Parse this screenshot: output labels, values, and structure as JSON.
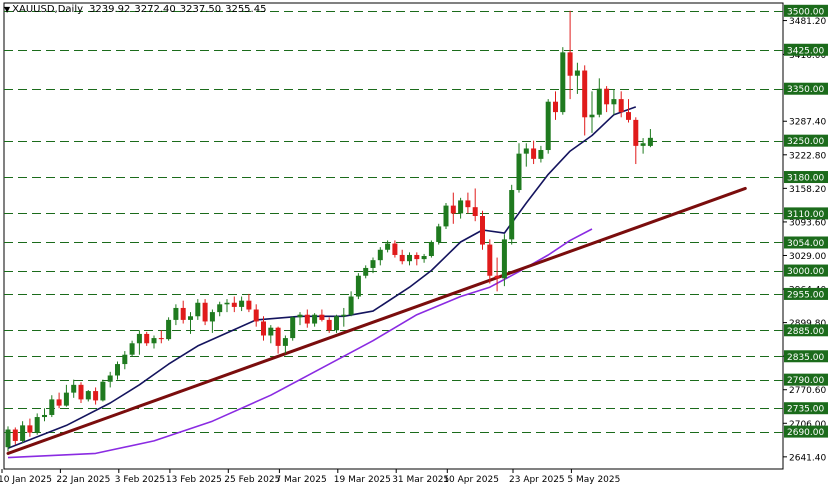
{
  "header": {
    "symbol": "XAUUSD,Daily",
    "open": "3239.92",
    "high": "3272.40",
    "low": "3237.50",
    "close": "3255.45"
  },
  "colors": {
    "bull": "#1f7a1f",
    "bear": "#e01b1b",
    "ma_fast": "#14145e",
    "ma_slow": "#8a2be2",
    "trendline": "#7a0d0d",
    "level_line": "#1b6b1b",
    "axis_text": "#000000",
    "background": "#ffffff"
  },
  "chart_data": {
    "type": "candlestick",
    "title": "",
    "xlabel": "",
    "ylabel": "",
    "ylim": [
      2618,
      3515
    ],
    "grid": false,
    "x_ticks": [
      "10 Jan 2025",
      "22 Jan 2025",
      "3 Feb 2025",
      "13 Feb 2025",
      "25 Feb 2025",
      "7 Mar 2025",
      "19 Mar 2025",
      "31 Mar 2025",
      "10 Apr 2025",
      "23 Apr 2025",
      "5 May 2025"
    ],
    "y_ticks": [
      "3481.20",
      "3416.00",
      "3287.40",
      "3222.80",
      "3158.20",
      "3093.60",
      "3029.00",
      "2964.40",
      "2899.80",
      "2835.20",
      "2770.60",
      "2706.00",
      "2641.40"
    ],
    "levels": [
      "3500.00",
      "3425.00",
      "3350.00",
      "3250.00",
      "3180.00",
      "3110.00",
      "3054.00",
      "3000.00",
      "2955.00",
      "2885.00",
      "2835.00",
      "2790.00",
      "2735.00",
      "2690.00"
    ],
    "candles": [
      {
        "o": 2660,
        "h": 2700,
        "l": 2652,
        "c": 2694
      },
      {
        "o": 2694,
        "h": 2698,
        "l": 2665,
        "c": 2672
      },
      {
        "o": 2672,
        "h": 2710,
        "l": 2668,
        "c": 2702
      },
      {
        "o": 2702,
        "h": 2715,
        "l": 2680,
        "c": 2688
      },
      {
        "o": 2688,
        "h": 2725,
        "l": 2684,
        "c": 2718
      },
      {
        "o": 2718,
        "h": 2735,
        "l": 2710,
        "c": 2722
      },
      {
        "o": 2722,
        "h": 2760,
        "l": 2718,
        "c": 2752
      },
      {
        "o": 2752,
        "h": 2765,
        "l": 2735,
        "c": 2740
      },
      {
        "o": 2740,
        "h": 2780,
        "l": 2738,
        "c": 2765
      },
      {
        "o": 2765,
        "h": 2790,
        "l": 2755,
        "c": 2780
      },
      {
        "o": 2780,
        "h": 2785,
        "l": 2745,
        "c": 2752
      },
      {
        "o": 2752,
        "h": 2770,
        "l": 2748,
        "c": 2768
      },
      {
        "o": 2768,
        "h": 2775,
        "l": 2742,
        "c": 2750
      },
      {
        "o": 2750,
        "h": 2790,
        "l": 2748,
        "c": 2786
      },
      {
        "o": 2786,
        "h": 2805,
        "l": 2775,
        "c": 2798
      },
      {
        "o": 2798,
        "h": 2825,
        "l": 2790,
        "c": 2820
      },
      {
        "o": 2820,
        "h": 2845,
        "l": 2810,
        "c": 2838
      },
      {
        "o": 2838,
        "h": 2865,
        "l": 2835,
        "c": 2860
      },
      {
        "o": 2860,
        "h": 2885,
        "l": 2838,
        "c": 2878
      },
      {
        "o": 2878,
        "h": 2882,
        "l": 2855,
        "c": 2860
      },
      {
        "o": 2860,
        "h": 2875,
        "l": 2850,
        "c": 2870
      },
      {
        "o": 2870,
        "h": 2885,
        "l": 2860,
        "c": 2868
      },
      {
        "o": 2868,
        "h": 2910,
        "l": 2865,
        "c": 2905
      },
      {
        "o": 2905,
        "h": 2935,
        "l": 2895,
        "c": 2928
      },
      {
        "o": 2928,
        "h": 2942,
        "l": 2898,
        "c": 2905
      },
      {
        "o": 2905,
        "h": 2920,
        "l": 2878,
        "c": 2912
      },
      {
        "o": 2912,
        "h": 2945,
        "l": 2905,
        "c": 2938
      },
      {
        "o": 2938,
        "h": 2945,
        "l": 2895,
        "c": 2902
      },
      {
        "o": 2902,
        "h": 2925,
        "l": 2880,
        "c": 2920
      },
      {
        "o": 2920,
        "h": 2940,
        "l": 2912,
        "c": 2935
      },
      {
        "o": 2935,
        "h": 2945,
        "l": 2920,
        "c": 2938
      },
      {
        "o": 2938,
        "h": 2950,
        "l": 2920,
        "c": 2930
      },
      {
        "o": 2930,
        "h": 2950,
        "l": 2922,
        "c": 2942
      },
      {
        "o": 2942,
        "h": 2955,
        "l": 2920,
        "c": 2925
      },
      {
        "o": 2925,
        "h": 2935,
        "l": 2892,
        "c": 2902
      },
      {
        "o": 2902,
        "h": 2912,
        "l": 2865,
        "c": 2875
      },
      {
        "o": 2875,
        "h": 2895,
        "l": 2860,
        "c": 2890
      },
      {
        "o": 2890,
        "h": 2892,
        "l": 2840,
        "c": 2855
      },
      {
        "o": 2855,
        "h": 2875,
        "l": 2840,
        "c": 2870
      },
      {
        "o": 2870,
        "h": 2912,
        "l": 2865,
        "c": 2910
      },
      {
        "o": 2910,
        "h": 2920,
        "l": 2895,
        "c": 2915
      },
      {
        "o": 2915,
        "h": 2925,
        "l": 2890,
        "c": 2898
      },
      {
        "o": 2898,
        "h": 2918,
        "l": 2892,
        "c": 2915
      },
      {
        "o": 2915,
        "h": 2925,
        "l": 2902,
        "c": 2905
      },
      {
        "o": 2905,
        "h": 2910,
        "l": 2880,
        "c": 2885
      },
      {
        "o": 2885,
        "h": 2915,
        "l": 2880,
        "c": 2912
      },
      {
        "o": 2912,
        "h": 2928,
        "l": 2892,
        "c": 2915
      },
      {
        "o": 2915,
        "h": 2960,
        "l": 2912,
        "c": 2950
      },
      {
        "o": 2950,
        "h": 2995,
        "l": 2945,
        "c": 2990
      },
      {
        "o": 2990,
        "h": 3010,
        "l": 2985,
        "c": 3005
      },
      {
        "o": 3005,
        "h": 3025,
        "l": 2995,
        "c": 3020
      },
      {
        "o": 3020,
        "h": 3045,
        "l": 3010,
        "c": 3040
      },
      {
        "o": 3040,
        "h": 3058,
        "l": 3035,
        "c": 3052
      },
      {
        "o": 3052,
        "h": 3058,
        "l": 3025,
        "c": 3030
      },
      {
        "o": 3030,
        "h": 3040,
        "l": 3012,
        "c": 3018
      },
      {
        "o": 3018,
        "h": 3035,
        "l": 3010,
        "c": 3030
      },
      {
        "o": 3030,
        "h": 3035,
        "l": 3010,
        "c": 3022
      },
      {
        "o": 3022,
        "h": 3032,
        "l": 3015,
        "c": 3028
      },
      {
        "o": 3028,
        "h": 3058,
        "l": 3025,
        "c": 3055
      },
      {
        "o": 3055,
        "h": 3090,
        "l": 3050,
        "c": 3085
      },
      {
        "o": 3085,
        "h": 3130,
        "l": 3080,
        "c": 3125
      },
      {
        "o": 3125,
        "h": 3150,
        "l": 3090,
        "c": 3110
      },
      {
        "o": 3110,
        "h": 3140,
        "l": 3100,
        "c": 3135
      },
      {
        "o": 3135,
        "h": 3150,
        "l": 3110,
        "c": 3122
      },
      {
        "o": 3122,
        "h": 3158,
        "l": 3095,
        "c": 3105
      },
      {
        "o": 3105,
        "h": 3115,
        "l": 3040,
        "c": 3050
      },
      {
        "o": 3050,
        "h": 3060,
        "l": 2975,
        "c": 2990
      },
      {
        "o": 2990,
        "h": 3025,
        "l": 2960,
        "c": 2985
      },
      {
        "o": 2985,
        "h": 3070,
        "l": 2970,
        "c": 3060
      },
      {
        "o": 3060,
        "h": 3165,
        "l": 3050,
        "c": 3155
      },
      {
        "o": 3155,
        "h": 3245,
        "l": 3150,
        "c": 3225
      },
      {
        "o": 3225,
        "h": 3245,
        "l": 3200,
        "c": 3235
      },
      {
        "o": 3235,
        "h": 3250,
        "l": 3205,
        "c": 3215
      },
      {
        "o": 3215,
        "h": 3240,
        "l": 3208,
        "c": 3232
      },
      {
        "o": 3232,
        "h": 3330,
        "l": 3225,
        "c": 3325
      },
      {
        "o": 3325,
        "h": 3345,
        "l": 3290,
        "c": 3305
      },
      {
        "o": 3305,
        "h": 3430,
        "l": 3300,
        "c": 3420
      },
      {
        "o": 3420,
        "h": 3500,
        "l": 3330,
        "c": 3375
      },
      {
        "o": 3375,
        "h": 3400,
        "l": 3340,
        "c": 3385
      },
      {
        "o": 3385,
        "h": 3395,
        "l": 3260,
        "c": 3295
      },
      {
        "o": 3295,
        "h": 3345,
        "l": 3265,
        "c": 3300
      },
      {
        "o": 3300,
        "h": 3370,
        "l": 3295,
        "c": 3350
      },
      {
        "o": 3350,
        "h": 3355,
        "l": 3305,
        "c": 3320
      },
      {
        "o": 3320,
        "h": 3348,
        "l": 3300,
        "c": 3330
      },
      {
        "o": 3330,
        "h": 3345,
        "l": 3295,
        "c": 3305
      },
      {
        "o": 3305,
        "h": 3330,
        "l": 3285,
        "c": 3290
      },
      {
        "o": 3290,
        "h": 3295,
        "l": 3205,
        "c": 3240
      },
      {
        "o": 3240,
        "h": 3255,
        "l": 3225,
        "c": 3245
      },
      {
        "o": 3239.92,
        "h": 3272.4,
        "l": 3237.5,
        "c": 3255.45
      }
    ],
    "ma_fast": [
      [
        0,
        2658
      ],
      [
        8,
        2702
      ],
      [
        14,
        2745
      ],
      [
        18,
        2780
      ],
      [
        22,
        2820
      ],
      [
        26,
        2855
      ],
      [
        30,
        2880
      ],
      [
        34,
        2905
      ],
      [
        40,
        2912
      ],
      [
        46,
        2912
      ],
      [
        50,
        2922
      ],
      [
        55,
        2968
      ],
      [
        58,
        3000
      ],
      [
        62,
        3055
      ],
      [
        65,
        3078
      ],
      [
        68,
        3072
      ],
      [
        71,
        3130
      ],
      [
        74,
        3185
      ],
      [
        77,
        3230
      ],
      [
        80,
        3260
      ],
      [
        83,
        3300
      ],
      [
        86,
        3315
      ]
    ],
    "ma_slow": [
      [
        0,
        2640
      ],
      [
        12,
        2648
      ],
      [
        20,
        2672
      ],
      [
        28,
        2710
      ],
      [
        36,
        2760
      ],
      [
        44,
        2820
      ],
      [
        50,
        2865
      ],
      [
        56,
        2915
      ],
      [
        62,
        2950
      ],
      [
        66,
        2968
      ],
      [
        70,
        2998
      ],
      [
        74,
        3030
      ],
      [
        77,
        3058
      ],
      [
        80,
        3080
      ]
    ],
    "trendline": [
      [
        0,
        2648
      ],
      [
        101,
        3158
      ]
    ]
  }
}
